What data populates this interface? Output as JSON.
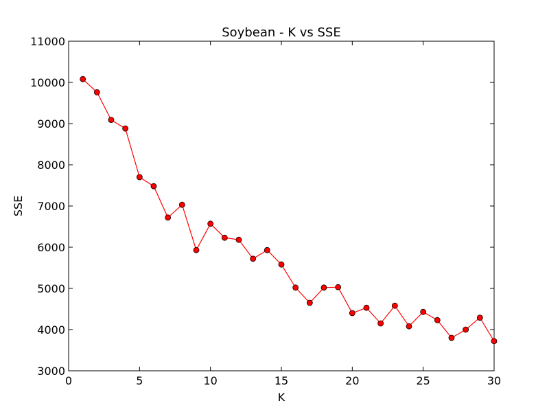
{
  "chart_data": {
    "type": "line",
    "title": "Soybean - K vs SSE",
    "xlabel": "K",
    "ylabel": "SSE",
    "xlim": [
      0,
      30
    ],
    "ylim": [
      3000,
      11000
    ],
    "xticks": [
      "0",
      "5",
      "10",
      "15",
      "20",
      "25",
      "30"
    ],
    "yticks": [
      "3000",
      "4000",
      "5000",
      "6000",
      "7000",
      "8000",
      "9000",
      "10000",
      "11000"
    ],
    "grid": false,
    "series": [
      {
        "x": [
          1,
          2,
          3,
          4,
          5,
          6,
          7,
          8,
          9,
          10,
          11,
          12,
          13,
          14,
          15,
          16,
          17,
          18,
          19,
          20,
          21,
          22,
          23,
          24,
          25,
          26,
          27,
          28,
          29,
          30
        ],
        "values": [
          10080,
          9760,
          9090,
          8880,
          7700,
          7480,
          6720,
          7030,
          5930,
          6570,
          6230,
          6180,
          5720,
          5930,
          5580,
          5020,
          4650,
          5020,
          5030,
          4400,
          4530,
          4150,
          4580,
          4080,
          4430,
          4230,
          3800,
          4000,
          4290,
          3720
        ],
        "color": "#ff0000"
      }
    ]
  }
}
